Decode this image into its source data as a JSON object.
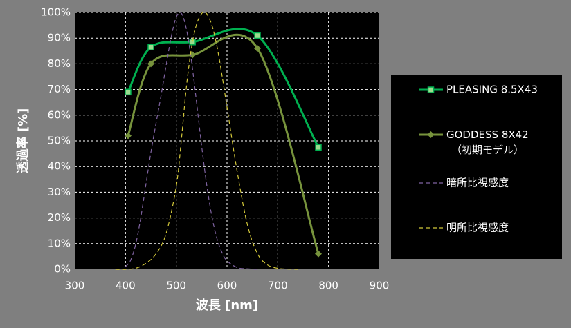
{
  "chart_data": {
    "type": "line",
    "x_label": "波長 [nm]",
    "y_label": "透過率 [%]",
    "xlim": [
      300,
      900
    ],
    "xticks": [
      300,
      400,
      500,
      600,
      700,
      800,
      900
    ],
    "ylim": [
      0,
      100
    ],
    "yticks": [
      {
        "value": 0,
        "label": "0%"
      },
      {
        "value": 10,
        "label": "10%"
      },
      {
        "value": 20,
        "label": "20%"
      },
      {
        "value": 30,
        "label": "30%"
      },
      {
        "value": 40,
        "label": "40%"
      },
      {
        "value": 50,
        "label": "50%"
      },
      {
        "value": 60,
        "label": "60%"
      },
      {
        "value": 70,
        "label": "70%"
      },
      {
        "value": 80,
        "label": "80%"
      },
      {
        "value": 90,
        "label": "90%"
      },
      {
        "value": 100,
        "label": "100%"
      }
    ],
    "grid": true,
    "series": [
      {
        "name": "PLEASING 8.5X43",
        "color": "#00b050",
        "marker": "square",
        "x": [
          405,
          450,
          532,
          660,
          780
        ],
        "values": [
          69,
          86.5,
          88.5,
          91,
          47.5
        ]
      },
      {
        "name": "GODDESS 8X42\n（初期モデル）",
        "color": "#77933c",
        "marker": "diamond",
        "x": [
          405,
          450,
          532,
          660,
          780
        ],
        "values": [
          52,
          80,
          83.5,
          86,
          6
        ]
      },
      {
        "name": "暗所比視感度",
        "color": "#8064a2",
        "style": "dashed",
        "x": [
          400,
          410,
          420,
          430,
          440,
          450,
          460,
          470,
          480,
          490,
          500,
          510,
          520,
          530,
          540,
          550,
          560,
          570,
          580,
          590,
          600,
          620,
          640,
          660
        ],
        "values": [
          1,
          3.5,
          9.7,
          20,
          32.8,
          45.5,
          56.7,
          67.6,
          79.3,
          90.4,
          98.2,
          99.7,
          93.5,
          81.1,
          65,
          48.1,
          32.9,
          20.8,
          12.1,
          6.6,
          3.3,
          0.7,
          0.2,
          0
        ]
      },
      {
        "name": "明所比視感度",
        "color": "#d4c93a",
        "style": "dashed",
        "x": [
          380,
          400,
          420,
          440,
          460,
          480,
          500,
          510,
          520,
          530,
          540,
          550,
          555,
          560,
          570,
          580,
          590,
          600,
          620,
          640,
          660,
          680,
          700,
          720,
          740
        ],
        "values": [
          0,
          0,
          0.4,
          2.3,
          6,
          13.9,
          32.3,
          50.3,
          71,
          86.2,
          95.4,
          99.5,
          100,
          99.5,
          95.2,
          87,
          75.7,
          63.1,
          38.1,
          17.5,
          6.1,
          1.7,
          0.4,
          0.1,
          0
        ]
      }
    ]
  }
}
